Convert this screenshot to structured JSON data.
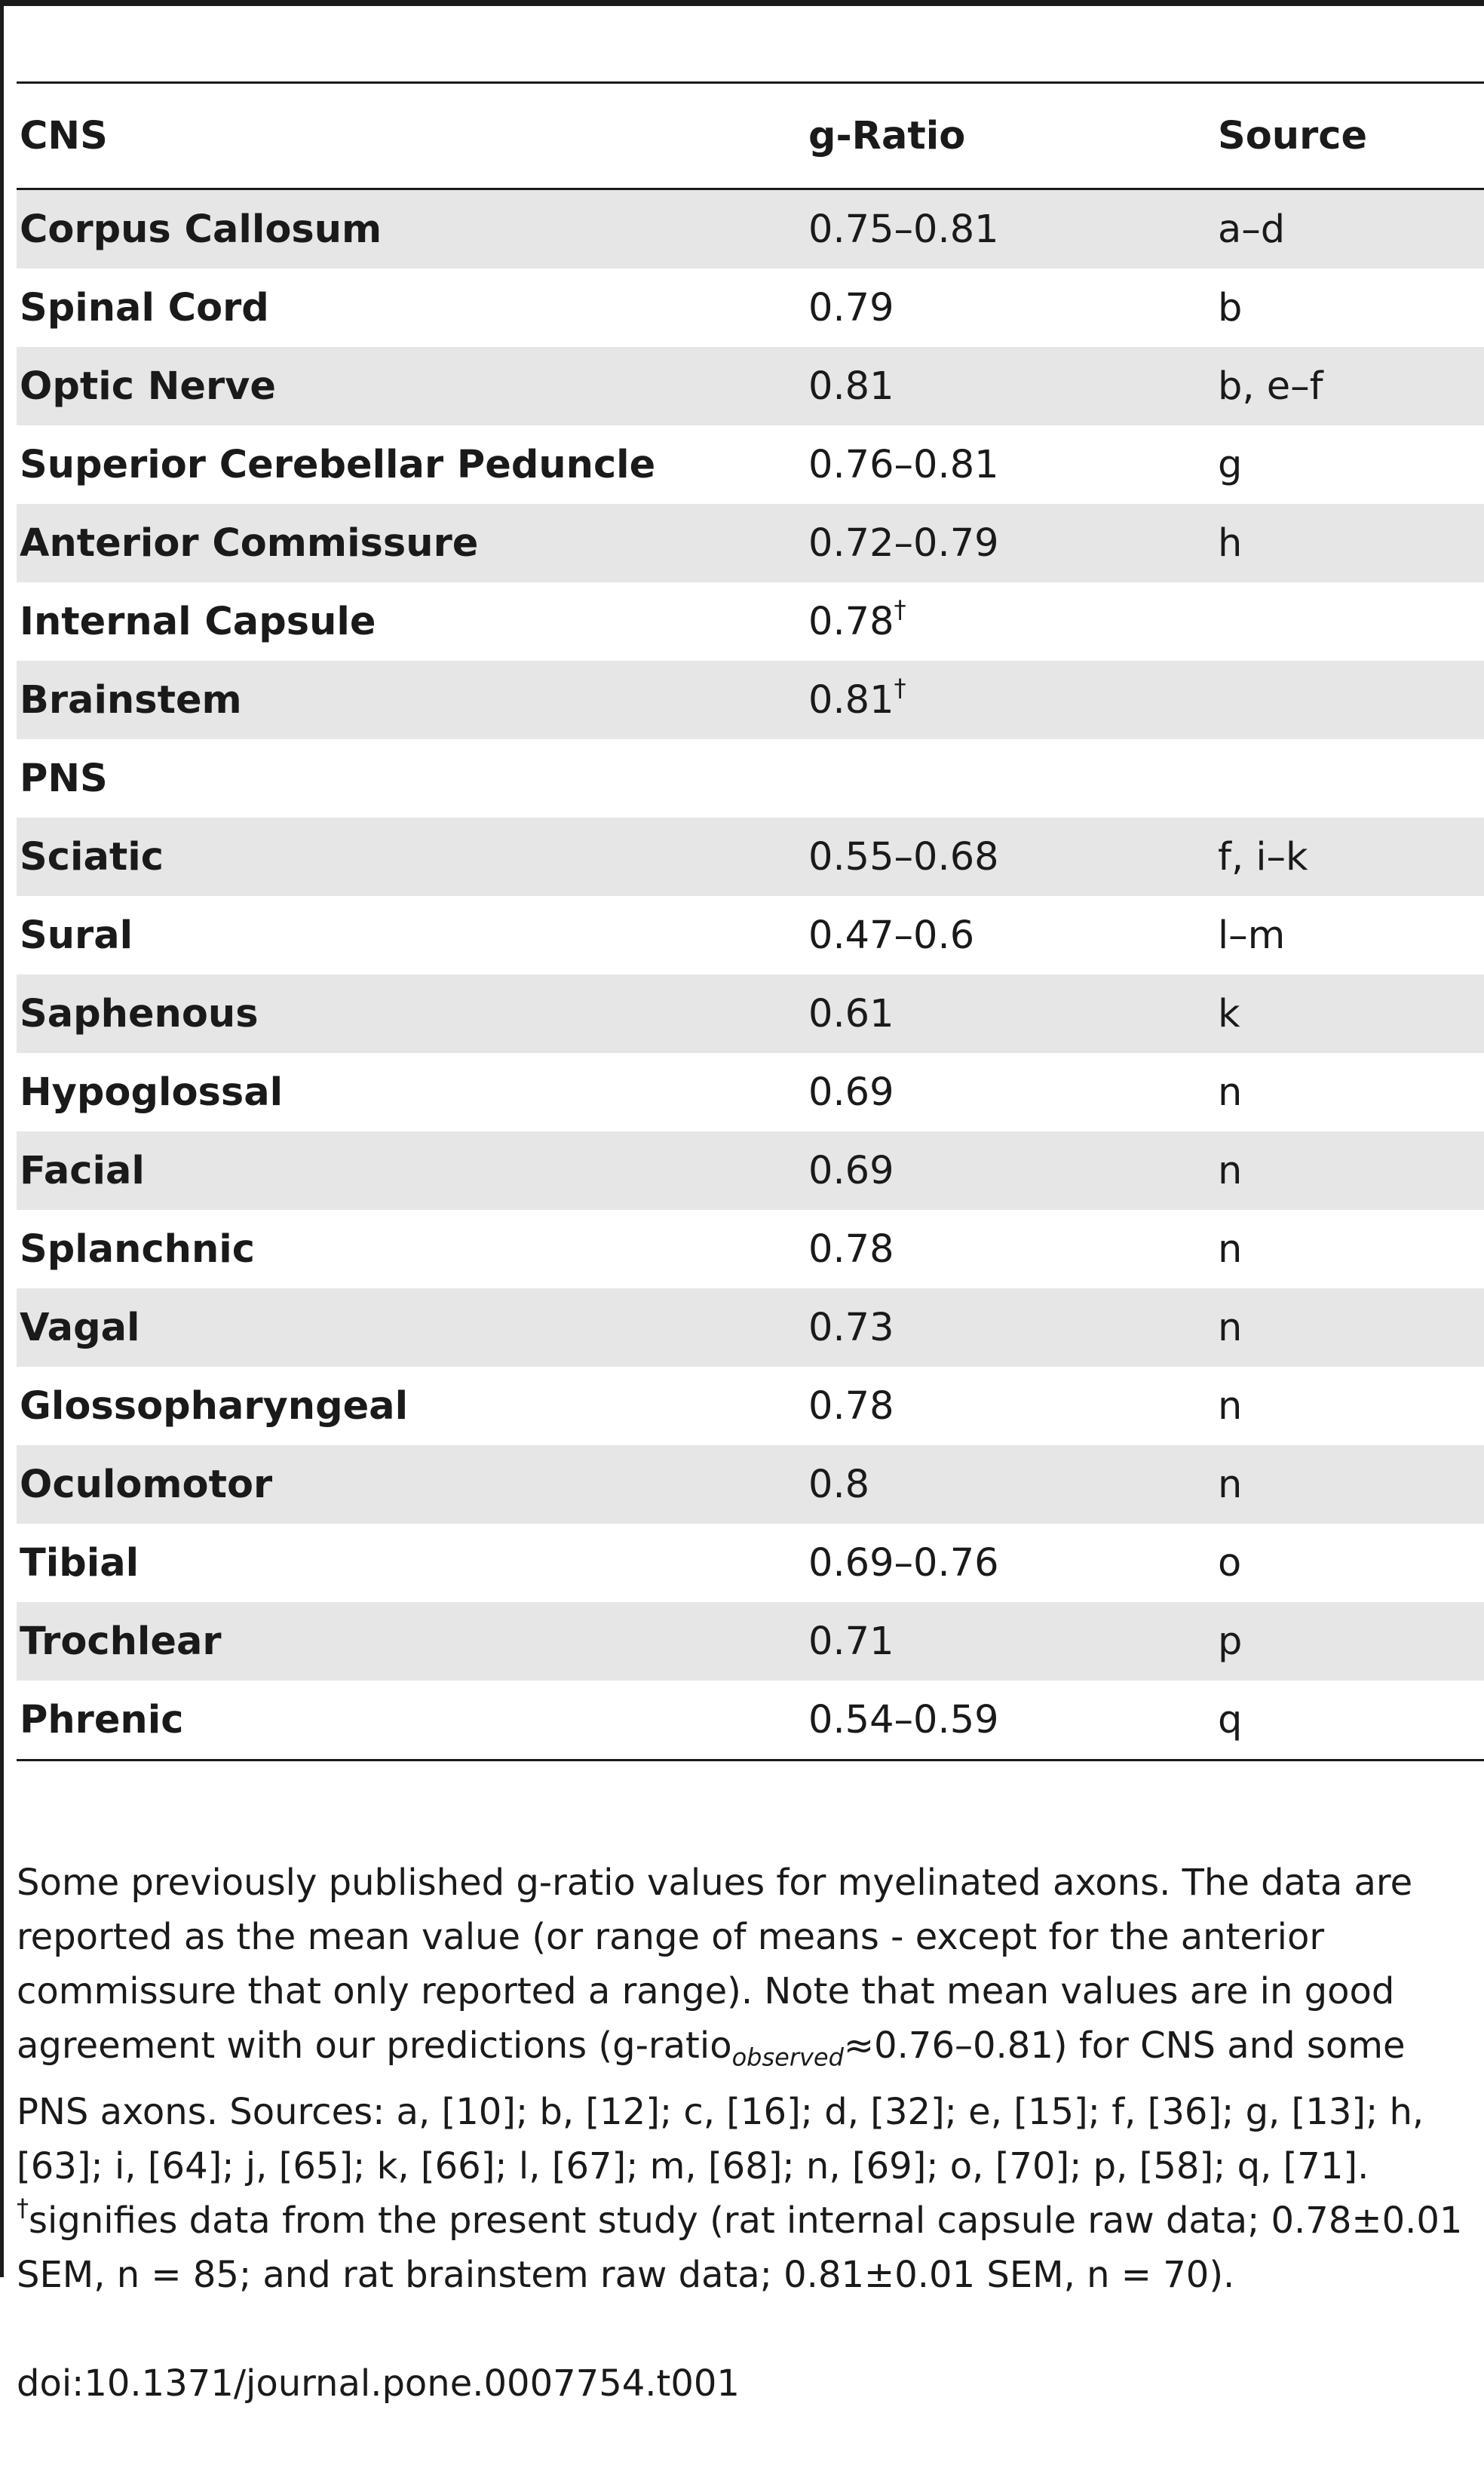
{
  "table": {
    "header": {
      "col1": "CNS",
      "col2": "g-Ratio",
      "col3": "Source"
    },
    "rows": [
      {
        "name": "Corpus Callosum",
        "ratio": "0.75–0.81",
        "mark": "",
        "source": "a–d",
        "shaded": true
      },
      {
        "name": "Spinal Cord",
        "ratio": "0.79",
        "mark": "",
        "source": "b",
        "shaded": false
      },
      {
        "name": "Optic Nerve",
        "ratio": "0.81",
        "mark": "",
        "source": "b, e–f",
        "shaded": true
      },
      {
        "name": "Superior Cerebellar Peduncle",
        "ratio": "0.76–0.81",
        "mark": "",
        "source": "g",
        "shaded": false
      },
      {
        "name": "Anterior Commissure",
        "ratio": "0.72–0.79",
        "mark": "",
        "source": "h",
        "shaded": true
      },
      {
        "name": "Internal Capsule",
        "ratio": "0.78",
        "mark": "†",
        "source": "",
        "shaded": false
      },
      {
        "name": "Brainstem",
        "ratio": "0.81",
        "mark": "†",
        "source": "",
        "shaded": true
      },
      {
        "name": "PNS",
        "ratio": "",
        "mark": "",
        "source": "",
        "shaded": false,
        "section": true
      },
      {
        "name": "Sciatic",
        "ratio": "0.55–0.68",
        "mark": "",
        "source": "f, i–k",
        "shaded": true
      },
      {
        "name": "Sural",
        "ratio": "0.47–0.6",
        "mark": "",
        "source": "l–m",
        "shaded": false
      },
      {
        "name": "Saphenous",
        "ratio": "0.61",
        "mark": "",
        "source": "k",
        "shaded": true
      },
      {
        "name": "Hypoglossal",
        "ratio": "0.69",
        "mark": "",
        "source": "n",
        "shaded": false
      },
      {
        "name": "Facial",
        "ratio": "0.69",
        "mark": "",
        "source": "n",
        "shaded": true
      },
      {
        "name": "Splanchnic",
        "ratio": "0.78",
        "mark": "",
        "source": "n",
        "shaded": false
      },
      {
        "name": "Vagal",
        "ratio": "0.73",
        "mark": "",
        "source": "n",
        "shaded": true
      },
      {
        "name": "Glossopharyngeal",
        "ratio": "0.78",
        "mark": "",
        "source": "n",
        "shaded": false
      },
      {
        "name": "Oculomotor",
        "ratio": "0.8",
        "mark": "",
        "source": "n",
        "shaded": true
      },
      {
        "name": "Tibial",
        "ratio": "0.69–0.76",
        "mark": "",
        "source": "o",
        "shaded": false
      },
      {
        "name": "Trochlear",
        "ratio": "0.71",
        "mark": "",
        "source": "p",
        "shaded": true
      },
      {
        "name": "Phrenic",
        "ratio": "0.54–0.59",
        "mark": "",
        "source": "q",
        "shaded": false
      }
    ]
  },
  "caption": {
    "part1": "Some previously published g-ratio values for myelinated axons. The data are reported as the mean value (or range of means - except for the anterior commissure that only reported a range). Note that mean values are in good agreement with our predictions (g-ratio",
    "subscript": "observed",
    "part2": "≈0.76–0.81) for CNS and some PNS axons. Sources: a, [10]; b, [12]; c, [16]; d, [32]; e, [15]; f, [36]; g, [13]; h, [63]; i, [64]; j, [65]; k, [66]; l, [67]; m, [68]; n, [69]; o, [70]; p, [58]; q, [71]. ",
    "dagger": "†",
    "part3": "signifies data from the present study (rat internal capsule raw data; 0.78±0.01 SEM, n = 85; and rat brainstem raw data; 0.81±0.01 SEM, n = 70).",
    "doi": "doi:10.1371/journal.pone.0007754.t001"
  }
}
